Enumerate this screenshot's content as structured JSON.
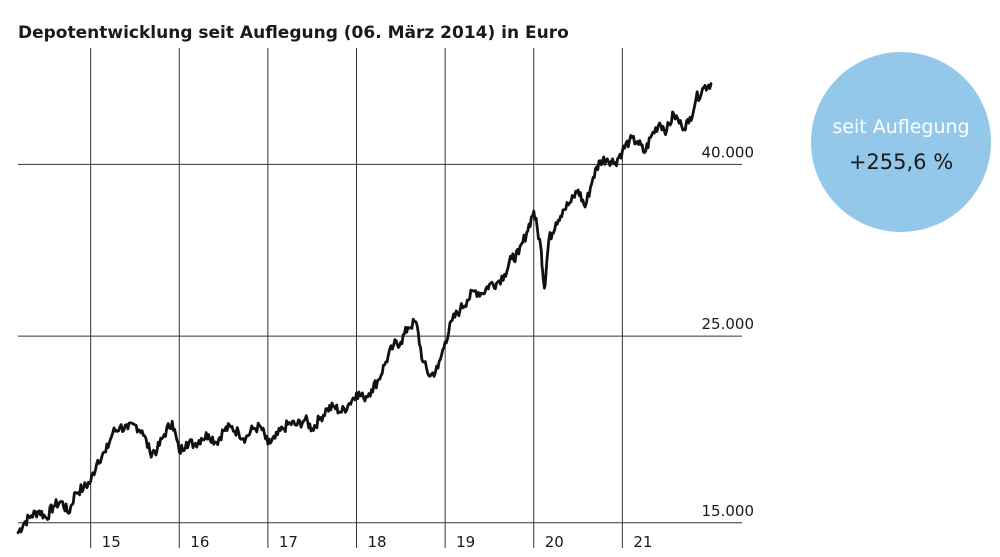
{
  "chart_data": {
    "type": "line",
    "title": "Depotentwicklung seit Auflegung (06. März 2014) in Euro",
    "y_scale": "log",
    "ylim": [
      14000,
      55000
    ],
    "xlim": [
      2014.18,
      2022.35
    ],
    "y_ticks": [
      {
        "value": 15000,
        "label": "15.000"
      },
      {
        "value": 25000,
        "label": "25.000"
      },
      {
        "value": 40000,
        "label": "40.000"
      }
    ],
    "x_ticks": [
      {
        "value": 2015,
        "label": "15"
      },
      {
        "value": 2016,
        "label": "16"
      },
      {
        "value": 2017,
        "label": "17"
      },
      {
        "value": 2018,
        "label": "18"
      },
      {
        "value": 2019,
        "label": "19"
      },
      {
        "value": 2020,
        "label": "20"
      },
      {
        "value": 2021,
        "label": "21"
      }
    ],
    "grid": true,
    "line_color": "#111111",
    "series": [
      {
        "x": [
          2014.18,
          2014.25,
          2014.33,
          2014.42,
          2014.5,
          2014.58,
          2014.67,
          2014.75,
          2014.83,
          2014.92,
          2015.0,
          2015.08,
          2015.17,
          2015.25,
          2015.33,
          2015.42,
          2015.5,
          2015.58,
          2015.67,
          2015.75,
          2015.83,
          2015.92,
          2016.0,
          2016.08,
          2016.17,
          2016.25,
          2016.33,
          2016.42,
          2016.5,
          2016.58,
          2016.67,
          2016.75,
          2016.83,
          2016.92,
          2017.0,
          2017.08,
          2017.17,
          2017.25,
          2017.33,
          2017.42,
          2017.5,
          2017.58,
          2017.67,
          2017.75,
          2017.83,
          2017.92,
          2018.0,
          2018.08,
          2018.17,
          2018.25,
          2018.33,
          2018.42,
          2018.5,
          2018.58,
          2018.67,
          2018.75,
          2018.83,
          2018.92,
          2019.0,
          2019.08,
          2019.17,
          2019.25,
          2019.33,
          2019.42,
          2019.5,
          2019.58,
          2019.67,
          2019.75,
          2019.83,
          2019.92,
          2020.0,
          2020.08,
          2020.12,
          2020.17,
          2020.25,
          2020.33,
          2020.42,
          2020.5,
          2020.58,
          2020.67,
          2020.75,
          2020.83,
          2020.92,
          2021.0,
          2021.08,
          2021.17,
          2021.25,
          2021.33,
          2021.42,
          2021.5,
          2021.58,
          2021.67,
          2021.75,
          2021.83,
          2021.92,
          2022.0
        ],
        "y": [
          14600,
          15000,
          15300,
          15500,
          15200,
          15700,
          15900,
          15400,
          16300,
          16500,
          16800,
          17800,
          18200,
          19200,
          19500,
          19400,
          19600,
          19300,
          18200,
          18300,
          19100,
          19800,
          18200,
          18700,
          18600,
          18900,
          19100,
          18700,
          19300,
          19500,
          19200,
          18900,
          19400,
          19500,
          18600,
          18900,
          19400,
          19700,
          19600,
          19900,
          19400,
          19900,
          20500,
          20600,
          20300,
          20800,
          21400,
          21100,
          21600,
          22200,
          23300,
          24400,
          24600,
          25600,
          26000,
          23300,
          22400,
          22900,
          24600,
          26100,
          26900,
          27600,
          28300,
          28100,
          28800,
          28900,
          29600,
          30900,
          31300,
          33200,
          35200,
          31900,
          28500,
          32500,
          34100,
          35300,
          36100,
          37300,
          35600,
          38600,
          40400,
          40600,
          40200,
          41500,
          42700,
          42600,
          41300,
          43300,
          44800,
          43900,
          45900,
          44400,
          44800,
          47800,
          49400,
          49900
        ],
        "ymin": 14400,
        "ymax": 50600
      }
    ]
  },
  "badge": {
    "line1": "seit Auflegung",
    "line2": "+255,6 %",
    "fill": "#93c8ea"
  }
}
